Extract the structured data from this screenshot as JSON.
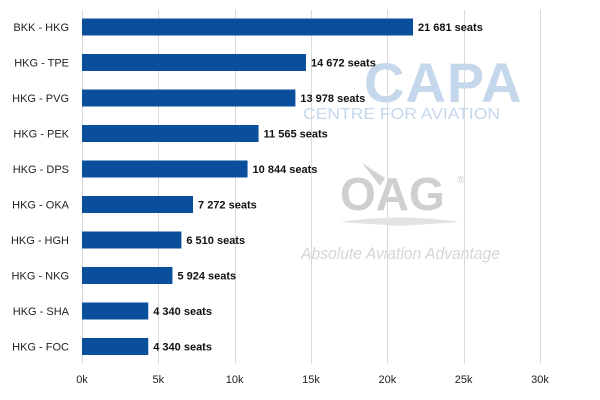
{
  "watermarks": {
    "capa_main": "CAPA",
    "capa_sub": "CENTRE FOR AVIATION",
    "oag_main": "OAG",
    "oag_reg": "®",
    "oag_sub": "Absolute Aviation Advantage"
  },
  "colors": {
    "bar": "#0a4f9c",
    "grid": "#d9d9d9",
    "capa_watermark": "#c5d7eb",
    "oag_watermark": "#cfcfcf"
  },
  "chart_data": {
    "type": "bar",
    "orientation": "horizontal",
    "categories": [
      "BKK - HKG",
      "HKG - TPE",
      "HKG - PVG",
      "HKG - PEK",
      "HKG - DPS",
      "HKG - OKA",
      "HKG - HGH",
      "HKG - NKG",
      "HKG - SHA",
      "HKG - FOC"
    ],
    "values": [
      21681,
      14672,
      13978,
      11565,
      10844,
      7272,
      6510,
      5924,
      4340,
      4340
    ],
    "data_labels": [
      "21 681 seats",
      "14 672 seats",
      "13 978 seats",
      "11 565 seats",
      "10 844 seats",
      "7 272 seats",
      "6 510 seats",
      "5 924 seats",
      "4 340 seats",
      "4 340 seats"
    ],
    "xlim": [
      0,
      30000
    ],
    "x_ticks": [
      0,
      5000,
      10000,
      15000,
      20000,
      25000,
      30000
    ],
    "x_tick_labels": [
      "0k",
      "5k",
      "10k",
      "15k",
      "20k",
      "25k",
      "30k"
    ],
    "title": "",
    "xlabel": "",
    "ylabel": "",
    "grid": "vertical",
    "legend": "none"
  }
}
